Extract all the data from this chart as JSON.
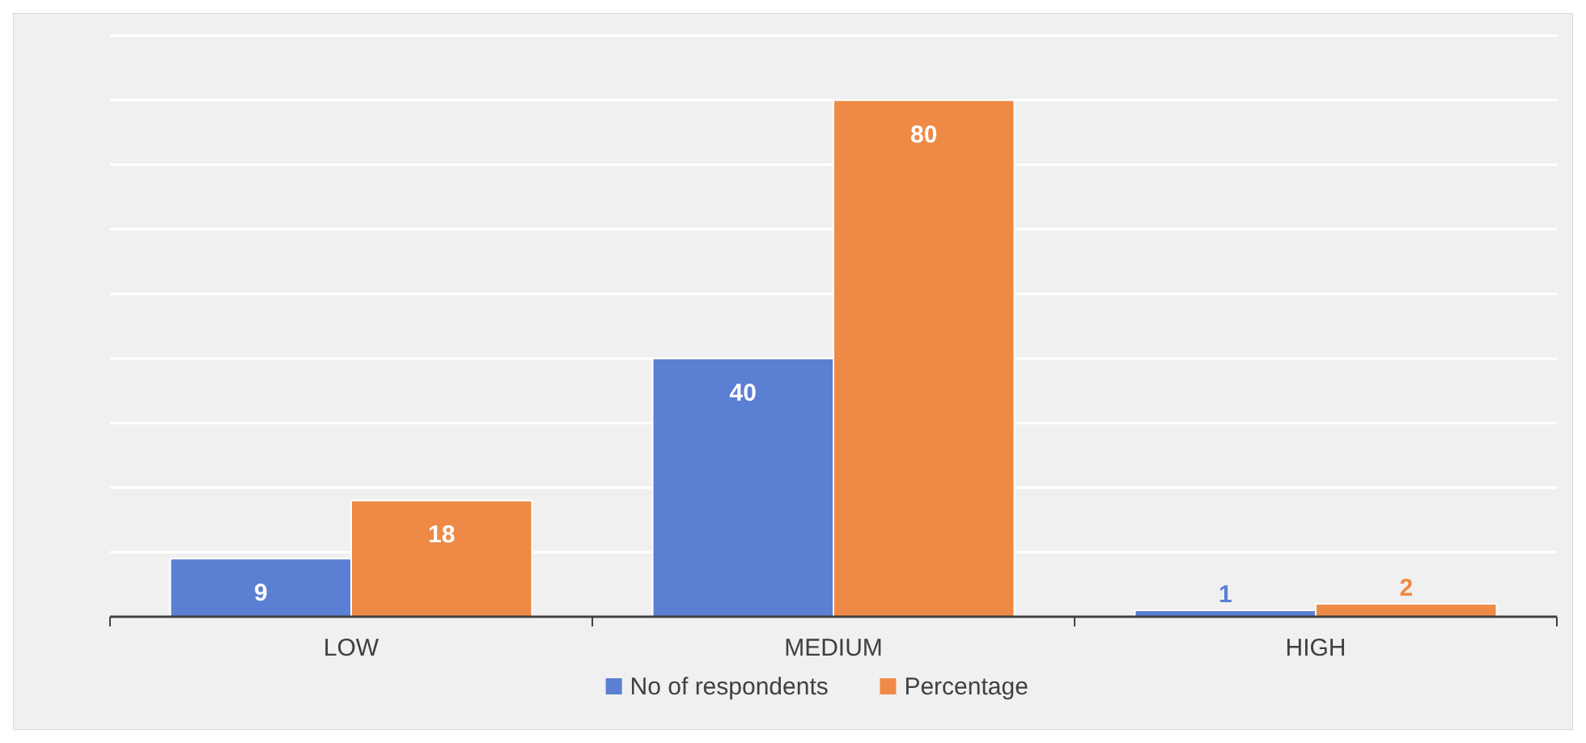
{
  "chart_data": {
    "type": "bar",
    "categories": [
      "LOW",
      "MEDIUM",
      "HIGH"
    ],
    "series": [
      {
        "name": "No of respondents",
        "color": "#5b7fd3",
        "values": [
          9,
          40,
          1
        ]
      },
      {
        "name": "Percentage",
        "color": "#ee8a45",
        "values": [
          18,
          80,
          2
        ]
      }
    ],
    "ylim": [
      0,
      90
    ],
    "yticks": [
      {
        "value": 0,
        "label": null
      },
      {
        "value": 10,
        "label": null
      },
      {
        "value": 20,
        "label": null
      },
      {
        "value": 30,
        "label": null
      },
      {
        "value": 40,
        "label": null
      },
      {
        "value": 50,
        "label": null
      },
      {
        "value": 60,
        "label": null
      },
      {
        "value": 70,
        "label": null
      },
      {
        "value": 80,
        "label": null
      },
      {
        "value": 90,
        "label": null
      }
    ],
    "tick_labels": "x",
    "grid": "y",
    "data_labels": true,
    "legend": "bottom"
  }
}
